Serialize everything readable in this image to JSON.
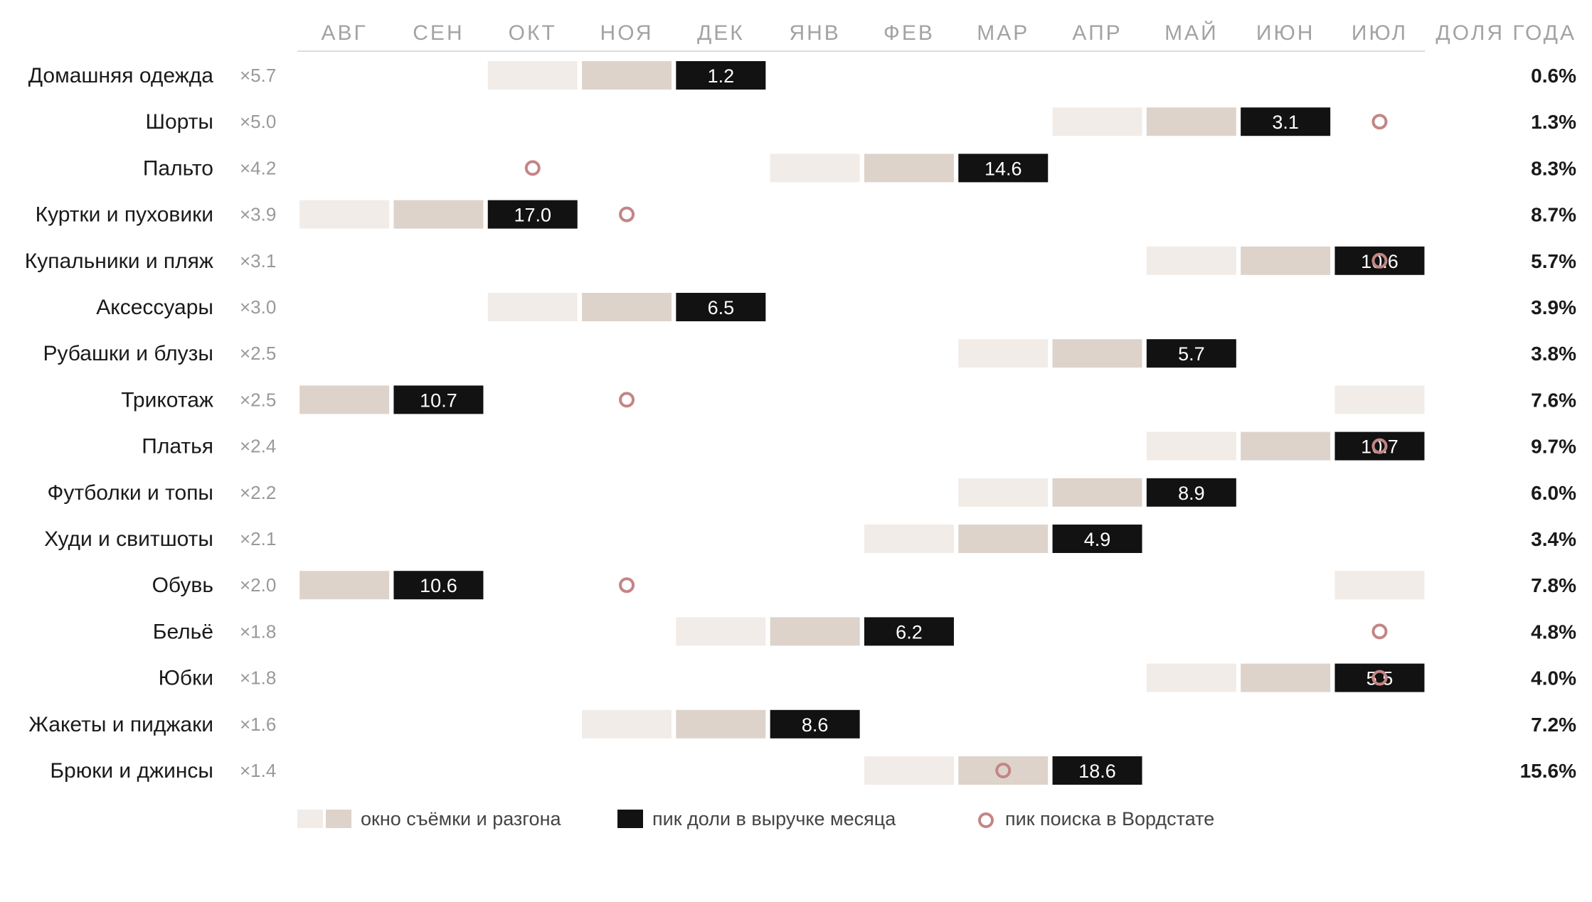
{
  "chart_data": {
    "type": "heatmap",
    "months": [
      "АВГ",
      "СЕН",
      "ОКТ",
      "НОЯ",
      "ДЕК",
      "ЯНВ",
      "ФЕВ",
      "МАР",
      "АПР",
      "МАЙ",
      "ИЮН",
      "ИЮЛ"
    ],
    "share_header": "ДОЛЯ ГОДА",
    "rows": [
      {
        "category": "Домашняя одежда",
        "multiplier": "×5.7",
        "window_light": [
          2
        ],
        "window_mid": [
          3
        ],
        "peak_month": 4,
        "peak_value": "1.2",
        "search_peak": null,
        "share": "0.6%"
      },
      {
        "category": "Шорты",
        "multiplier": "×5.0",
        "window_light": [
          8
        ],
        "window_mid": [
          9
        ],
        "peak_month": 10,
        "peak_value": "3.1",
        "search_peak": 11,
        "share": "1.3%"
      },
      {
        "category": "Пальто",
        "multiplier": "×4.2",
        "window_light": [
          5
        ],
        "window_mid": [
          6
        ],
        "peak_month": 7,
        "peak_value": "14.6",
        "search_peak": 2,
        "share": "8.3%"
      },
      {
        "category": "Куртки и пуховики",
        "multiplier": "×3.9",
        "window_light": [
          0
        ],
        "window_mid": [
          1
        ],
        "peak_month": 2,
        "peak_value": "17.0",
        "search_peak": 3,
        "share": "8.7%"
      },
      {
        "category": "Купальники и пляж",
        "multiplier": "×3.1",
        "window_light": [
          9
        ],
        "window_mid": [
          10
        ],
        "peak_month": 11,
        "peak_value": "10.6",
        "search_peak": 11,
        "share": "5.7%"
      },
      {
        "category": "Аксессуары",
        "multiplier": "×3.0",
        "window_light": [
          2
        ],
        "window_mid": [
          3
        ],
        "peak_month": 4,
        "peak_value": "6.5",
        "search_peak": null,
        "share": "3.9%"
      },
      {
        "category": "Рубашки и блузы",
        "multiplier": "×2.5",
        "window_light": [
          7
        ],
        "window_mid": [
          8
        ],
        "peak_month": 9,
        "peak_value": "5.7",
        "search_peak": null,
        "share": "3.8%"
      },
      {
        "category": "Трикотаж",
        "multiplier": "×2.5",
        "window_light": [
          11
        ],
        "window_mid": [
          0
        ],
        "peak_month": 1,
        "peak_value": "10.7",
        "search_peak": 3,
        "share": "7.6%"
      },
      {
        "category": "Платья",
        "multiplier": "×2.4",
        "window_light": [
          9
        ],
        "window_mid": [
          10
        ],
        "peak_month": 11,
        "peak_value": "10.7",
        "search_peak": 11,
        "share": "9.7%"
      },
      {
        "category": "Футболки и топы",
        "multiplier": "×2.2",
        "window_light": [
          7
        ],
        "window_mid": [
          8
        ],
        "peak_month": 9,
        "peak_value": "8.9",
        "search_peak": null,
        "share": "6.0%"
      },
      {
        "category": "Худи и свитшоты",
        "multiplier": "×2.1",
        "window_light": [
          6
        ],
        "window_mid": [
          7
        ],
        "peak_month": 8,
        "peak_value": "4.9",
        "search_peak": null,
        "share": "3.4%"
      },
      {
        "category": "Обувь",
        "multiplier": "×2.0",
        "window_light": [
          11
        ],
        "window_mid": [
          0
        ],
        "peak_month": 1,
        "peak_value": "10.6",
        "search_peak": 3,
        "share": "7.8%"
      },
      {
        "category": "Бельё",
        "multiplier": "×1.8",
        "window_light": [
          4
        ],
        "window_mid": [
          5
        ],
        "peak_month": 6,
        "peak_value": "6.2",
        "search_peak": 11,
        "share": "4.8%"
      },
      {
        "category": "Юбки",
        "multiplier": "×1.8",
        "window_light": [
          9
        ],
        "window_mid": [
          10
        ],
        "peak_month": 11,
        "peak_value": "5.5",
        "search_peak": 11,
        "share": "4.0%"
      },
      {
        "category": "Жакеты и пиджаки",
        "multiplier": "×1.6",
        "window_light": [
          3
        ],
        "window_mid": [
          4
        ],
        "peak_month": 5,
        "peak_value": "8.6",
        "search_peak": null,
        "share": "7.2%"
      },
      {
        "category": "Брюки и джинсы",
        "multiplier": "×1.4",
        "window_light": [
          6
        ],
        "window_mid": [
          7
        ],
        "peak_month": 8,
        "peak_value": "18.6",
        "search_peak": 7,
        "share": "15.6%"
      }
    ],
    "legend": {
      "window": "окно съёмки и разгона",
      "peak": "пик доли в выручке месяца",
      "search": "пик поиска в Вордстате"
    },
    "colors": {
      "window_light": "#f2ece8",
      "window_mid": "#ddd3cb",
      "peak": "#121212",
      "search_ring": "#c48585",
      "axis_line": "#dcdcdc"
    }
  }
}
